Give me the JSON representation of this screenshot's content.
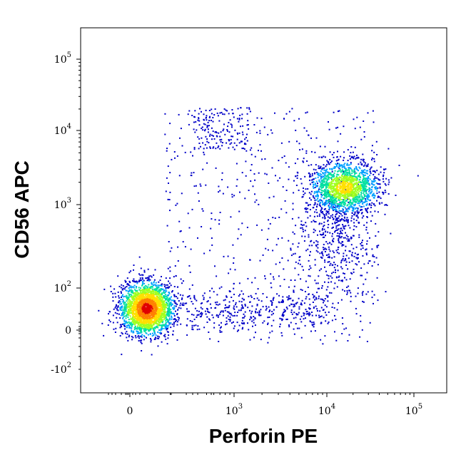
{
  "chart_data": {
    "type": "scatter",
    "subtype": "flow-cytometry-density-dot-plot",
    "xlabel": "Perforin PE",
    "ylabel": "CD56 APC",
    "x_scale": "biexponential (logicle)",
    "y_scale": "biexponential (logicle)",
    "x_ticks": [
      {
        "base": "0",
        "exp": ""
      },
      {
        "base": "10",
        "exp": "3"
      },
      {
        "base": "10",
        "exp": "4"
      },
      {
        "base": "10",
        "exp": "5"
      }
    ],
    "y_ticks": [
      {
        "base": "10",
        "exp": "5"
      },
      {
        "base": "10",
        "exp": "4"
      },
      {
        "base": "10",
        "exp": "3"
      },
      {
        "base": "10",
        "exp": "2"
      },
      {
        "base": "0",
        "exp": ""
      },
      {
        "base": "-10",
        "exp": "2"
      }
    ],
    "density_colormap": [
      "#0000c8",
      "#00a0ff",
      "#00e0a0",
      "#a0ff20",
      "#ffe000",
      "#ff8000",
      "#e00000"
    ],
    "populations": [
      {
        "x_center": 30,
        "y_center": 40,
        "relative_size": "large",
        "peak_density": "high"
      },
      {
        "x_center": 18000,
        "y_center": 1500,
        "relative_size": "large",
        "peak_density": "medium"
      }
    ],
    "grid": false,
    "legend": "none"
  }
}
